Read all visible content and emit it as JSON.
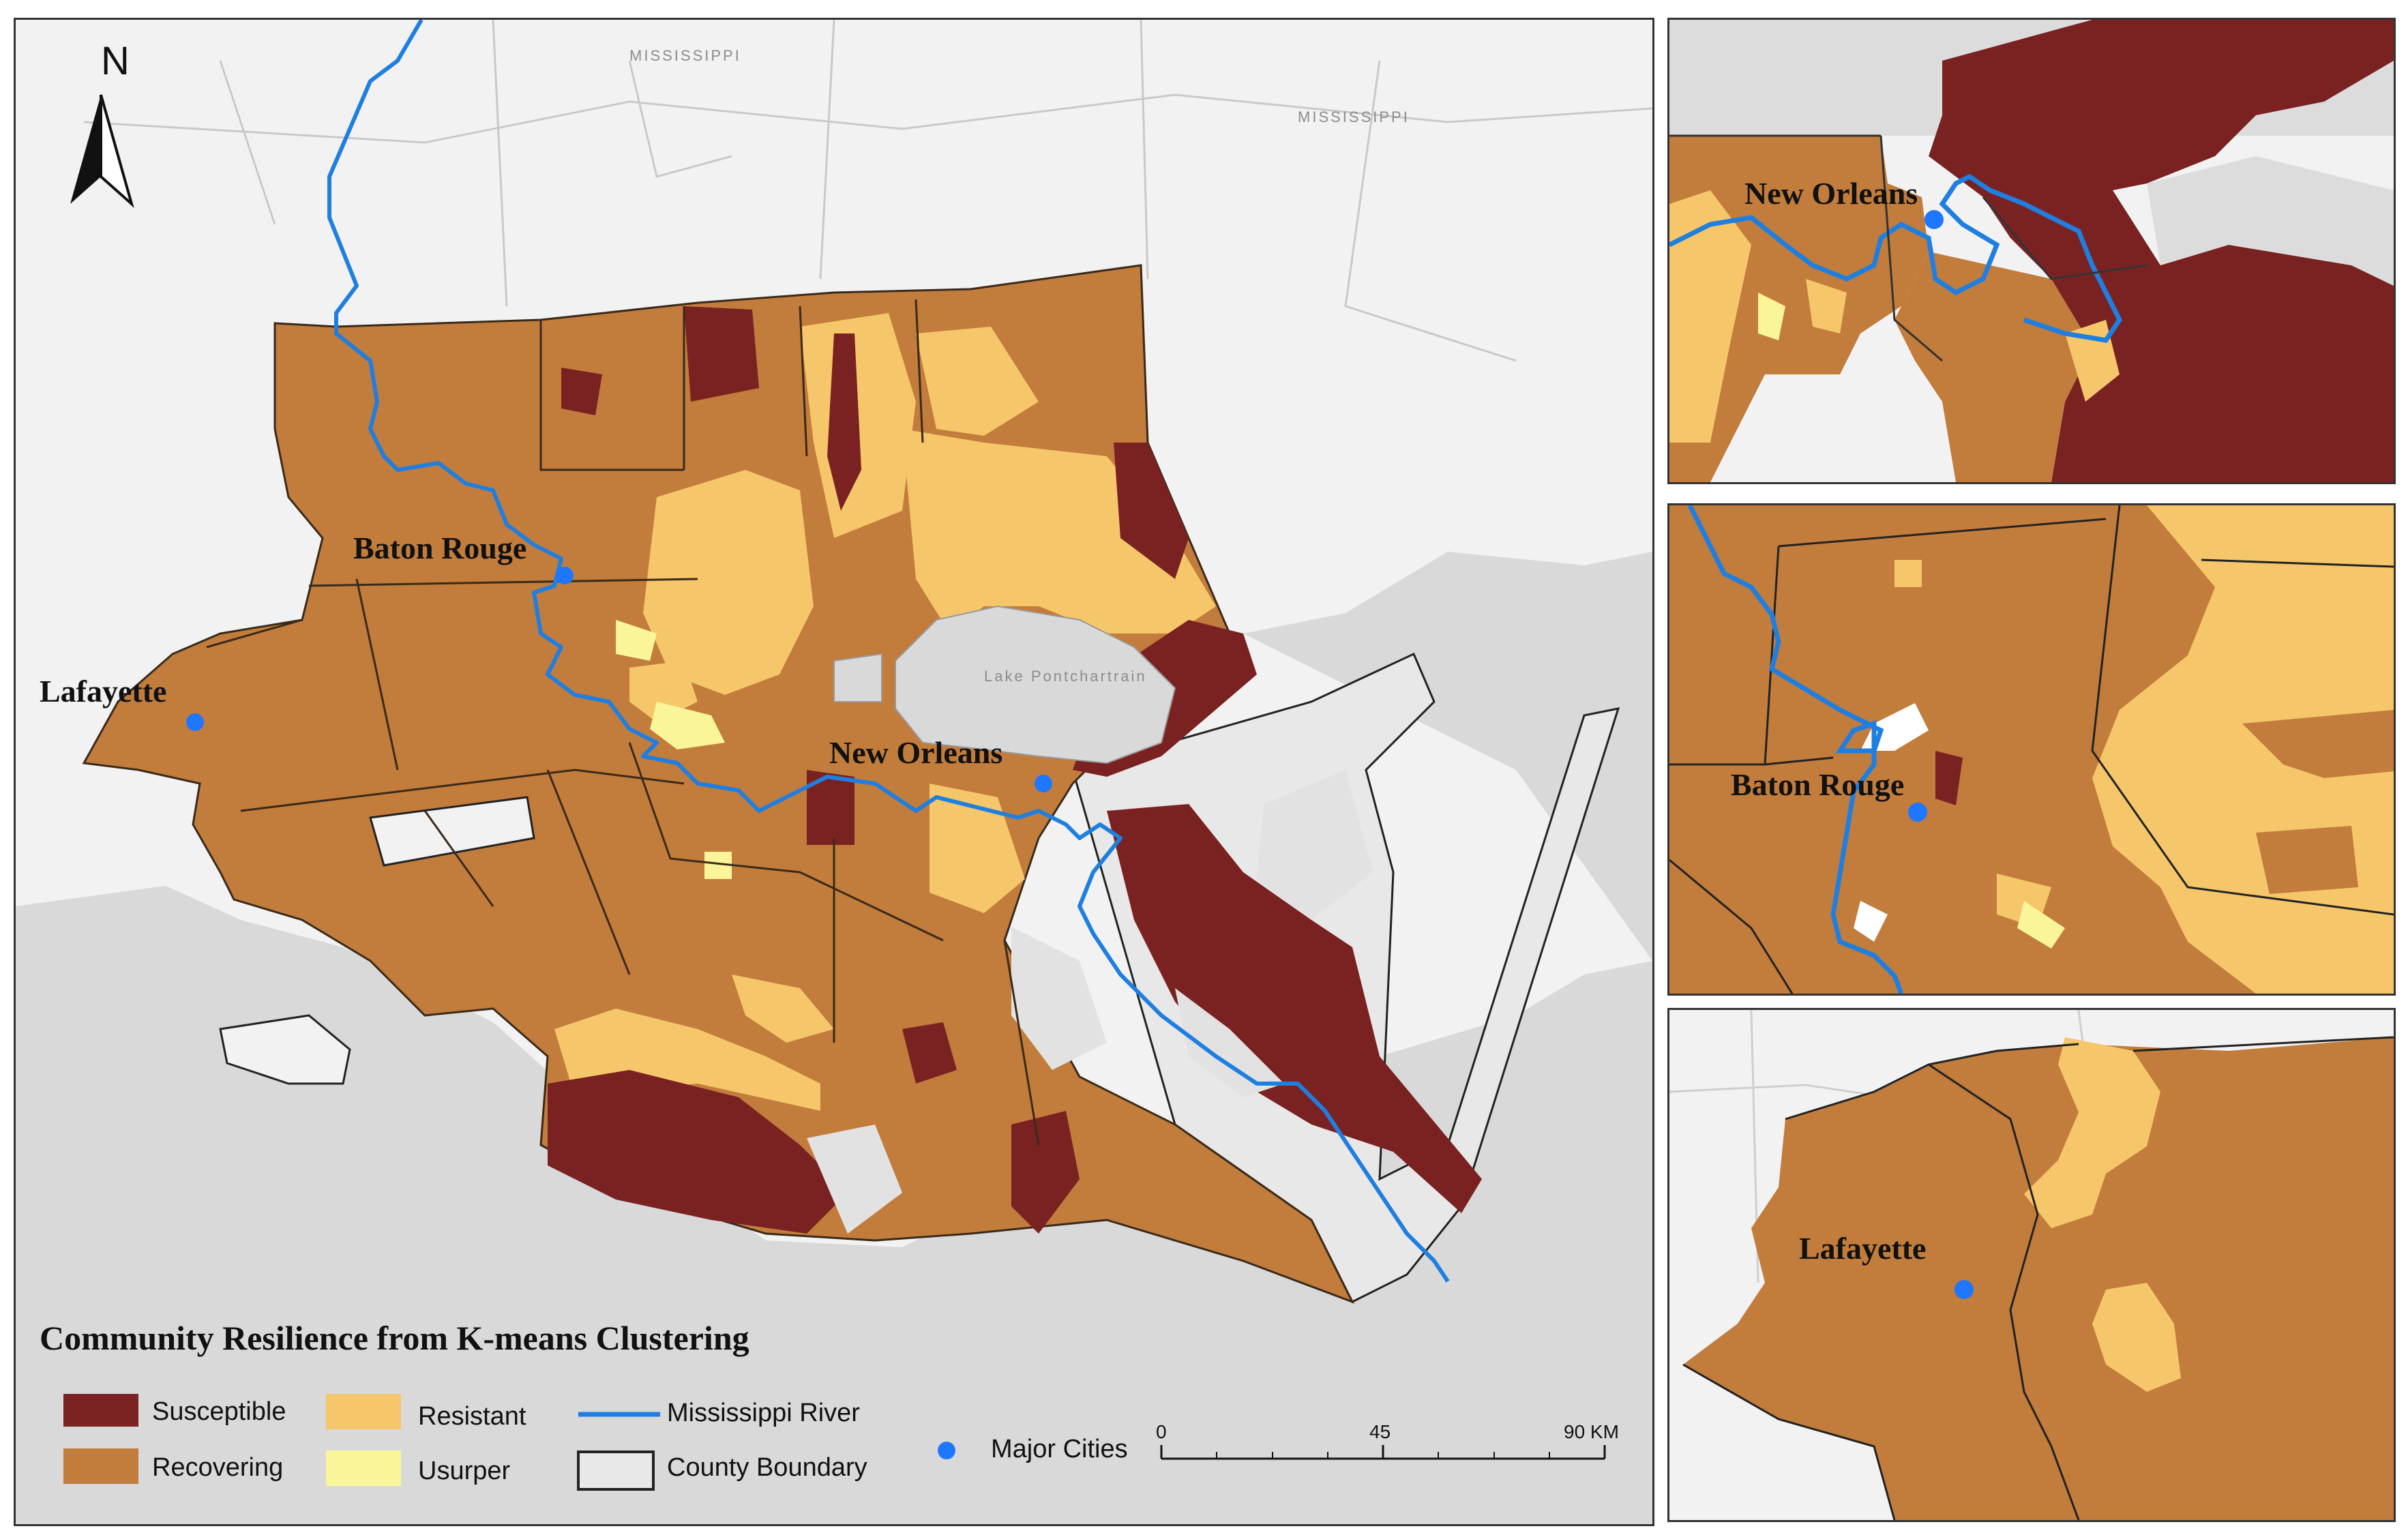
{
  "main_map": {
    "north_arrow": "N",
    "state_labels": [
      "MISSISSIPPI",
      "MISSISSIPPI"
    ],
    "water_label": "Lake Pontchartrain",
    "cities": [
      {
        "name": "Baton Rouge"
      },
      {
        "name": "Lafayette"
      },
      {
        "name": "New Orleans"
      }
    ]
  },
  "insets": [
    {
      "city": "New Orleans"
    },
    {
      "city": "Baton Rouge"
    },
    {
      "city": "Lafayette"
    }
  ],
  "legend": {
    "title": "Community Resilience from K-means Clustering",
    "classes": [
      {
        "label": "Susceptible",
        "color": "#7a2222"
      },
      {
        "label": "Recovering",
        "color": "#c27c3c"
      },
      {
        "label": "Resistant",
        "color": "#f5c66a"
      },
      {
        "label": "Usurper",
        "color": "#fbf59a"
      }
    ],
    "river": {
      "label": "Mississippi River",
      "color": "#1f7fe0"
    },
    "county": {
      "label": "County Boundary"
    },
    "cities": {
      "label": "Major Cities",
      "color": "#1f77ff"
    }
  },
  "scale_bar": {
    "ticks": [
      "0",
      "45",
      "90 KM"
    ]
  },
  "colors": {
    "land_background": "#f2f2f2",
    "water": "#d9d9d9",
    "wetland": "#e8e8e8"
  }
}
